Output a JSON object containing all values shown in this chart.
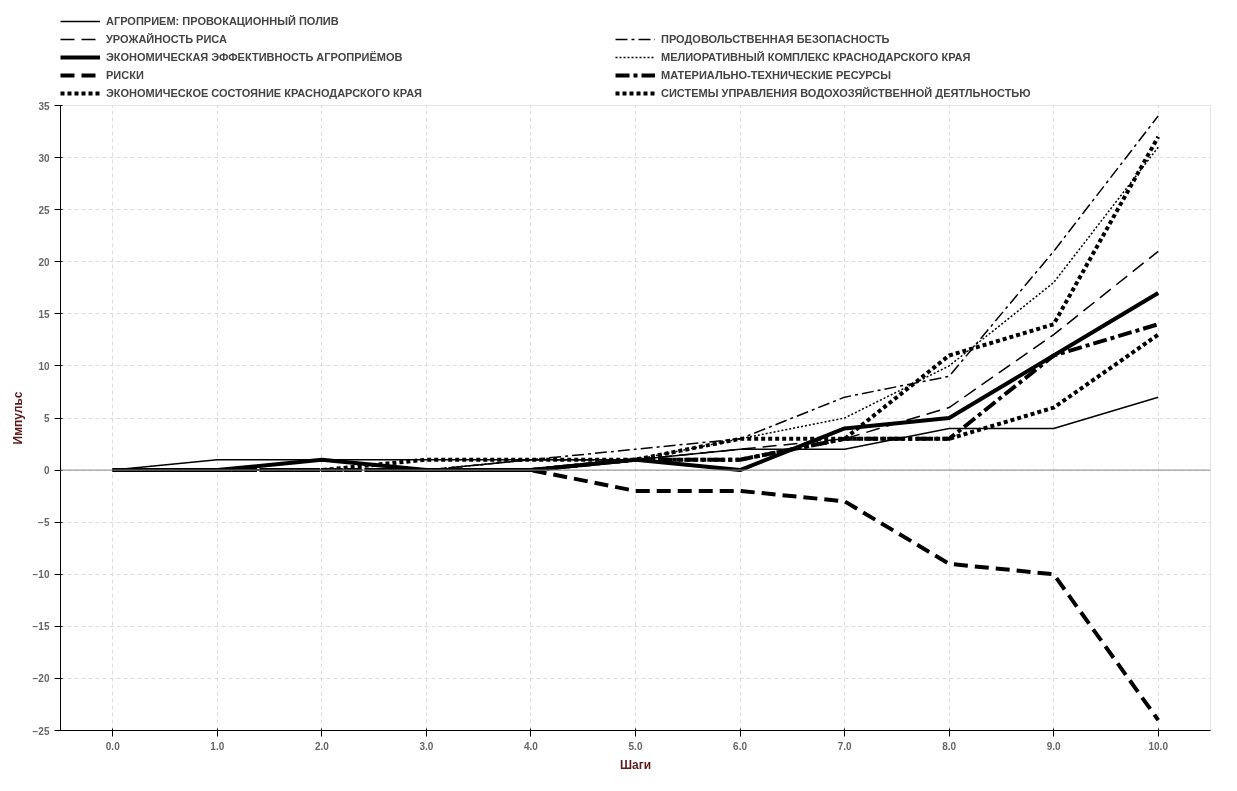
{
  "chart_data": {
    "type": "line",
    "xlabel": "Шаги",
    "ylabel": "Импульс",
    "x": [
      0,
      1,
      2,
      3,
      4,
      5,
      6,
      7,
      8,
      9,
      10
    ],
    "series": [
      {
        "name": "АГРОПРИЕМ: ПРОВОКАЦИОННЫЙ ПОЛИВ",
        "color": "#000000",
        "line_style": "solid",
        "values": [
          0,
          1,
          1,
          1,
          1,
          1,
          2,
          2,
          4,
          4,
          7
        ]
      },
      {
        "name": "УРОЖАЙНОСТЬ РИСА",
        "color": "#000000",
        "line_style": "dashed",
        "values": [
          0,
          0,
          0,
          0,
          1,
          1,
          2,
          3,
          6,
          13,
          21
        ]
      },
      {
        "name": "ЭКОНОМИЧЕСКАЯ ЭФФЕКТИВНОСТЬ АГРОПРИЁМОВ",
        "color": "#000000",
        "line_style": "solid",
        "values": [
          0,
          0,
          1,
          0,
          0,
          1,
          0,
          4,
          5,
          11,
          17
        ]
      },
      {
        "name": "РИСКИ",
        "color": "#000000",
        "line_style": "dashed",
        "values": [
          0,
          0,
          0,
          0,
          0,
          -2,
          -2,
          -3,
          -9,
          -10,
          -24
        ]
      },
      {
        "name": "ЭКОНОМИЧЕСКОЕ СОСТОЯНИЕ КРАСНОДАРСКОГО КРАЯ",
        "color": "#000000",
        "line_style": "dotted",
        "values": [
          0,
          0,
          0,
          1,
          1,
          1,
          3,
          3,
          3,
          6,
          13
        ]
      },
      {
        "name": "ПРОДОВОЛЬСТВЕННАЯ БЕЗОПАСНОСТЬ",
        "color": "#000000",
        "line_style": "dashdot",
        "values": [
          0,
          0,
          0,
          0,
          1,
          2,
          3,
          7,
          9,
          21,
          34
        ]
      },
      {
        "name": "МЕЛИОРАТИВНЫЙ КОМПЛЕКС КРАСНОДАРСКОГО КРАЯ",
        "color": "#000000",
        "line_style": "dotted",
        "values": [
          0,
          0,
          0,
          0,
          1,
          1,
          3,
          5,
          10,
          18,
          31
        ]
      },
      {
        "name": "МАТЕРИАЛЬНО-ТЕХНИЧЕСКИЕ РЕСУРСЫ",
        "color": "#000000",
        "line_style": "dashdot",
        "values": [
          0,
          0,
          0,
          0,
          0,
          1,
          1,
          3,
          3,
          11,
          14
        ]
      },
      {
        "name": "СИСТЕМЫ УПРАВЛЕНИЯ ВОДОХОЗЯЙСТВЕННОЙ ДЕЯТЛЬНОСТЬЮ",
        "color": "#000000",
        "line_style": "dotted",
        "values": [
          0,
          0,
          0,
          0,
          0,
          1,
          1,
          3,
          11,
          14,
          32
        ]
      }
    ],
    "xlim": [
      -0.5,
      10.5
    ],
    "xticks": [
      {
        "value": 0,
        "label": "0.0"
      },
      {
        "value": 1,
        "label": "1.0"
      },
      {
        "value": 2,
        "label": "2.0"
      },
      {
        "value": 3,
        "label": "3.0"
      },
      {
        "value": 4,
        "label": "4.0"
      },
      {
        "value": 5,
        "label": "5.0"
      },
      {
        "value": 6,
        "label": "6.0"
      },
      {
        "value": 7,
        "label": "7.0"
      },
      {
        "value": 8,
        "label": "8.0"
      },
      {
        "value": 9,
        "label": "9.0"
      },
      {
        "value": 10,
        "label": "10.0"
      }
    ],
    "ylim": [
      -25,
      35
    ],
    "yticks": [
      -25,
      -20,
      -15,
      -10,
      -5,
      0,
      5,
      10,
      15,
      20,
      25,
      30,
      35
    ],
    "ref_lines": [
      {
        "axis": "y",
        "value": 0,
        "color": "#888888"
      }
    ],
    "grid": true,
    "legend": "top",
    "marker": "none"
  }
}
